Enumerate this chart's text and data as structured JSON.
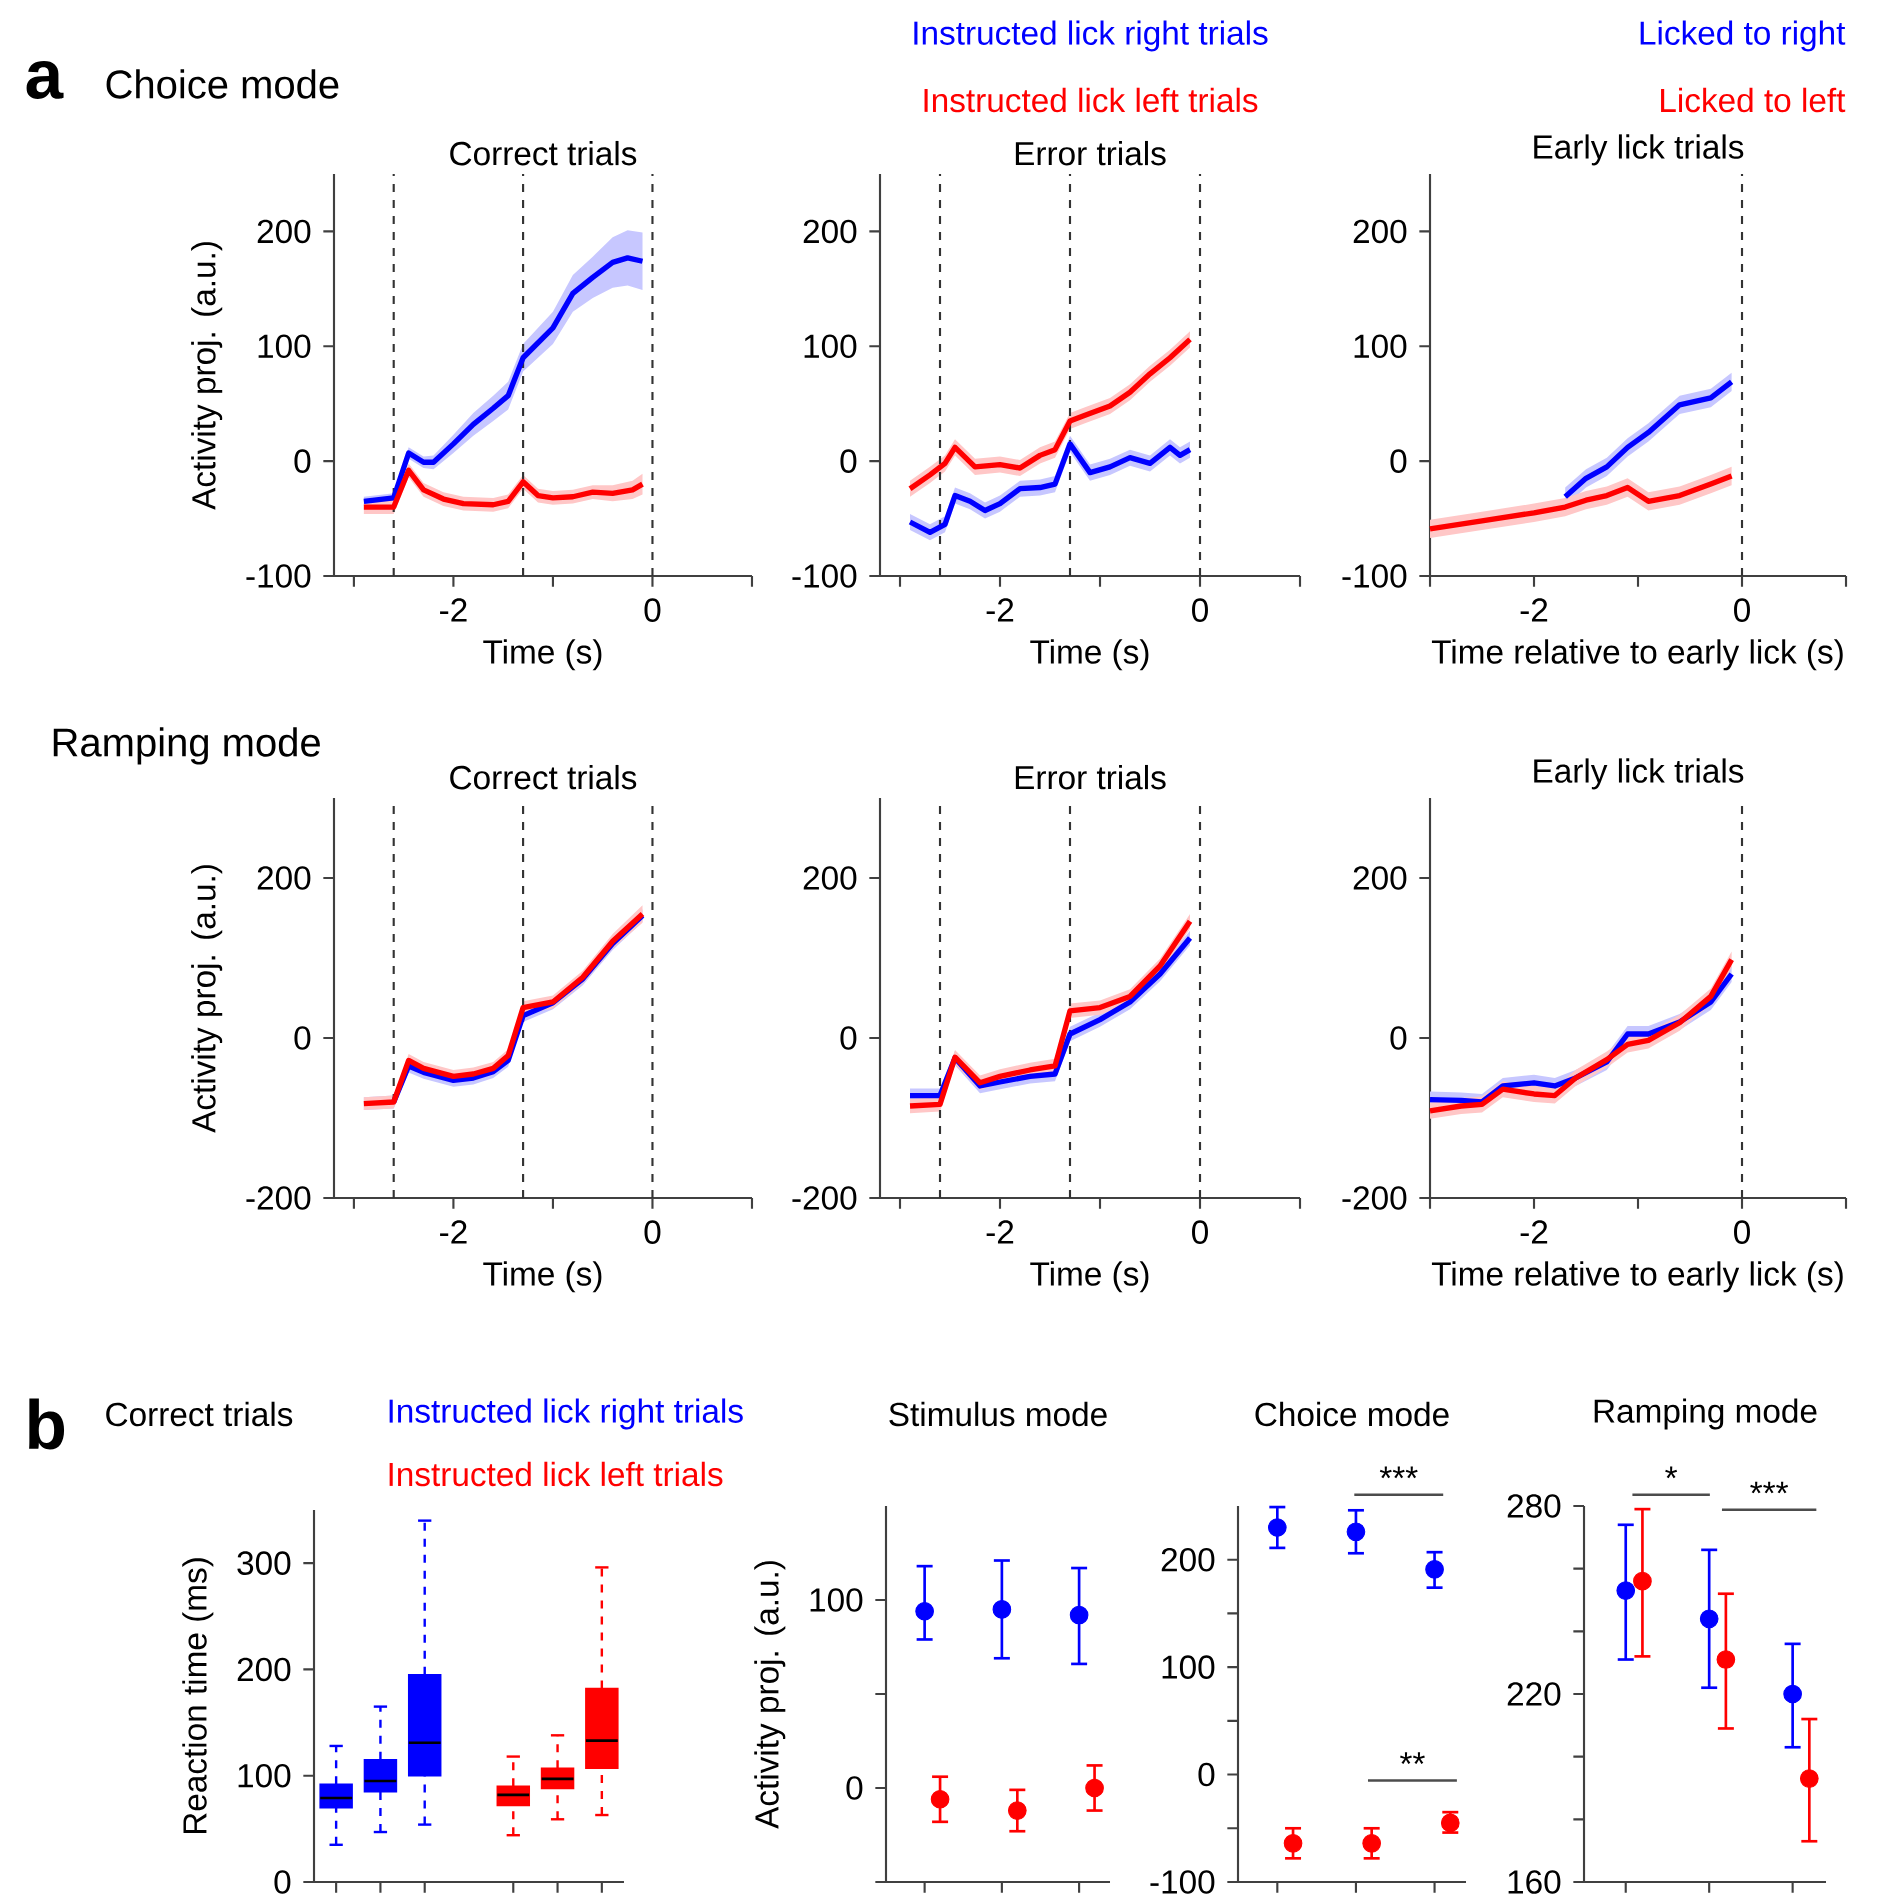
{
  "chart_data": [
    {
      "type": "line",
      "title": "Correct trials",
      "xlabel": "Time (s)",
      "ylabel": "Activity proj. (a.u.)",
      "annotations": [
        "a",
        "Choice mode"
      ],
      "xlim": [
        -3.2,
        1
      ],
      "ylim": [
        -100,
        250
      ],
      "xticks": [
        {
          "value": -3,
          "label": null
        },
        -2,
        {
          "value": -1,
          "label": null
        },
        0,
        {
          "value": 1,
          "label": null
        }
      ],
      "yticks": [
        -100,
        0,
        100,
        200
      ],
      "ref_lines": [
        {
          "axis": "x",
          "value": -2.6,
          "line_style": "dashed"
        },
        {
          "axis": "x",
          "value": -1.3,
          "line_style": "dashed"
        },
        {
          "axis": "x",
          "value": 0,
          "line_style": "dashed"
        }
      ],
      "series": [
        {
          "color": "#0000ff",
          "x": [
            -2.9,
            -2.6,
            -2.45,
            -2.3,
            -2.2,
            -2.0,
            -1.8,
            -1.6,
            -1.45,
            -1.3,
            -1.0,
            -0.8,
            -0.6,
            -0.4,
            -0.25,
            -0.1
          ],
          "values": [
            -35,
            -32,
            7,
            -1,
            -1,
            15,
            32,
            46,
            57,
            90,
            116,
            146,
            160,
            173,
            177,
            174
          ],
          "lower": [
            -39,
            -36,
            2,
            -6,
            -7,
            7,
            22,
            35,
            45,
            78,
            102,
            130,
            142,
            151,
            153,
            149
          ],
          "upper": [
            -31,
            -28,
            12,
            4,
            5,
            23,
            42,
            57,
            69,
            102,
            130,
            162,
            178,
            195,
            201,
            199
          ]
        },
        {
          "color": "#ff0000",
          "x": [
            -2.9,
            -2.6,
            -2.45,
            -2.3,
            -2.1,
            -1.9,
            -1.6,
            -1.45,
            -1.3,
            -1.15,
            -1.0,
            -0.8,
            -0.6,
            -0.4,
            -0.2,
            -0.1
          ],
          "values": [
            -40,
            -40,
            -8,
            -25,
            -33,
            -37,
            -38,
            -35,
            -18,
            -30,
            -32,
            -31,
            -27,
            -28,
            -25,
            -20
          ],
          "lower": [
            -46,
            -46,
            -14,
            -31,
            -39,
            -43,
            -44,
            -41,
            -24,
            -36,
            -38,
            -37,
            -33,
            -35,
            -33,
            -29
          ],
          "upper": [
            -34,
            -34,
            -2,
            -19,
            -27,
            -31,
            -32,
            -29,
            -12,
            -24,
            -26,
            -25,
            -21,
            -21,
            -17,
            -11
          ]
        }
      ]
    },
    {
      "type": "line",
      "title": "Error trials",
      "xlabel": "Time (s)",
      "legend": "top",
      "xlim": [
        -3.2,
        1
      ],
      "ylim": [
        -100,
        250
      ],
      "xticks": [
        {
          "value": -3,
          "label": null
        },
        -2,
        {
          "value": -1,
          "label": null
        },
        0,
        {
          "value": 1,
          "label": null
        }
      ],
      "yticks": [
        -100,
        0,
        100,
        200
      ],
      "ref_lines": [
        {
          "axis": "x",
          "value": -2.6,
          "line_style": "dashed"
        },
        {
          "axis": "x",
          "value": -1.3,
          "line_style": "dashed"
        },
        {
          "axis": "x",
          "value": 0,
          "line_style": "dashed"
        }
      ],
      "series": [
        {
          "name": "Instructed lick right trials",
          "color": "#0000ff",
          "x": [
            -2.9,
            -2.7,
            -2.55,
            -2.45,
            -2.3,
            -2.15,
            -2.0,
            -1.8,
            -1.6,
            -1.45,
            -1.3,
            -1.1,
            -0.9,
            -0.7,
            -0.5,
            -0.3,
            -0.2,
            -0.1
          ],
          "values": [
            -53,
            -62,
            -55,
            -30,
            -35,
            -43,
            -37,
            -24,
            -23,
            -20,
            15,
            -10,
            -5,
            3,
            -2,
            12,
            5,
            10
          ],
          "lower": [
            -60,
            -69,
            -62,
            -37,
            -42,
            -50,
            -44,
            -31,
            -30,
            -27,
            8,
            -17,
            -12,
            -4,
            -9,
            5,
            -2,
            3
          ],
          "upper": [
            -46,
            -55,
            -48,
            -23,
            -28,
            -36,
            -30,
            -17,
            -16,
            -13,
            22,
            -3,
            2,
            10,
            5,
            19,
            12,
            17
          ]
        },
        {
          "name": "Instructed lick left trials",
          "color": "#ff0000",
          "x": [
            -2.9,
            -2.7,
            -2.55,
            -2.45,
            -2.25,
            -2.0,
            -1.8,
            -1.6,
            -1.45,
            -1.3,
            -1.15,
            -0.9,
            -0.7,
            -0.5,
            -0.3,
            -0.1
          ],
          "values": [
            -24,
            -12,
            -2,
            12,
            -5,
            -3,
            -6,
            5,
            10,
            35,
            40,
            48,
            60,
            76,
            90,
            106
          ],
          "lower": [
            -31,
            -19,
            -9,
            5,
            -12,
            -10,
            -13,
            -2,
            3,
            28,
            33,
            41,
            53,
            69,
            83,
            99
          ],
          "upper": [
            -17,
            -5,
            5,
            19,
            2,
            4,
            1,
            12,
            17,
            42,
            47,
            55,
            67,
            83,
            97,
            113
          ]
        }
      ]
    },
    {
      "type": "line",
      "title": "Early lick trials",
      "xlabel": "Time relative to early lick (s)",
      "legend": "top right",
      "xlim": [
        -3,
        1
      ],
      "ylim": [
        -100,
        250
      ],
      "xticks": [
        {
          "value": -3,
          "label": null
        },
        -2,
        {
          "value": -1,
          "label": null
        },
        0,
        {
          "value": 1,
          "label": null
        }
      ],
      "yticks": [
        -100,
        0,
        100,
        200
      ],
      "ref_lines": [
        {
          "axis": "x",
          "value": 0,
          "line_style": "dashed"
        }
      ],
      "series": [
        {
          "name": "Licked to right",
          "color": "#0000ff",
          "x": [
            -1.7,
            -1.5,
            -1.3,
            -1.1,
            -0.9,
            -0.6,
            -0.3,
            -0.1
          ],
          "values": [
            -31,
            -15,
            -5,
            12,
            25,
            49,
            55,
            69
          ],
          "lower": [
            -39,
            -23,
            -13,
            4,
            17,
            41,
            47,
            61
          ],
          "upper": [
            -23,
            -7,
            3,
            20,
            33,
            57,
            63,
            77
          ]
        },
        {
          "name": "Licked to left",
          "color": "#ff0000",
          "x": [
            -3.0,
            -2.5,
            -2.0,
            -1.7,
            -1.5,
            -1.3,
            -1.1,
            -0.9,
            -0.6,
            -0.3,
            -0.1
          ],
          "values": [
            -59,
            -52,
            -45,
            -40,
            -34,
            -30,
            -23,
            -35,
            -30,
            -20,
            -13
          ],
          "lower": [
            -67,
            -60,
            -53,
            -48,
            -42,
            -38,
            -31,
            -43,
            -38,
            -28,
            -21
          ],
          "upper": [
            -51,
            -44,
            -37,
            -32,
            -26,
            -22,
            -15,
            -27,
            -22,
            -12,
            -5
          ]
        }
      ]
    },
    {
      "type": "line",
      "title": "Correct trials",
      "xlabel": "Time (s)",
      "ylabel": "Activity proj. (a.u.)",
      "annotations": [
        "Ramping mode"
      ],
      "xlim": [
        -3.2,
        1
      ],
      "ylim": [
        -200,
        300
      ],
      "xticks": [
        {
          "value": -3,
          "label": null
        },
        -2,
        {
          "value": -1,
          "label": null
        },
        0,
        {
          "value": 1,
          "label": null
        }
      ],
      "yticks": [
        -200,
        0,
        200
      ],
      "ref_lines": [
        {
          "axis": "x",
          "value": -2.6,
          "line_style": "dashed"
        },
        {
          "axis": "x",
          "value": -1.3,
          "line_style": "dashed"
        },
        {
          "axis": "x",
          "value": 0,
          "line_style": "dashed"
        }
      ],
      "series": [
        {
          "color": "#0000ff",
          "x": [
            -2.9,
            -2.6,
            -2.45,
            -2.3,
            -2.0,
            -1.8,
            -1.6,
            -1.45,
            -1.3,
            -1.0,
            -0.7,
            -0.4,
            -0.1
          ],
          "values": [
            null,
            -80,
            -35,
            -43,
            -53,
            -50,
            -42,
            -28,
            28,
            44,
            74,
            118,
            153
          ],
          "lower": [
            -90,
            -88,
            -43,
            -51,
            -61,
            -58,
            -50,
            -36,
            20,
            36,
            66,
            110,
            145
          ],
          "upper": [
            -74,
            -72,
            -27,
            -35,
            -45,
            -42,
            -34,
            -20,
            36,
            52,
            82,
            126,
            161
          ]
        },
        {
          "color": "#ff0000",
          "x": [
            -2.9,
            -2.6,
            -2.45,
            -2.3,
            -2.0,
            -1.8,
            -1.6,
            -1.45,
            -1.3,
            -1.0,
            -0.7,
            -0.4,
            -0.1
          ],
          "values": [
            -82,
            -80,
            -28,
            -38,
            -48,
            -45,
            -38,
            -22,
            38,
            45,
            76,
            121,
            155
          ],
          "lower": [
            -90,
            -88,
            -36,
            -46,
            -56,
            -53,
            -46,
            -30,
            30,
            37,
            68,
            112,
            144
          ],
          "upper": [
            -74,
            -72,
            -20,
            -30,
            -40,
            -37,
            -30,
            -14,
            46,
            53,
            84,
            130,
            166
          ]
        }
      ]
    },
    {
      "type": "line",
      "title": "Error trials",
      "xlabel": "Time (s)",
      "xlim": [
        -3.2,
        1
      ],
      "ylim": [
        -200,
        300
      ],
      "xticks": [
        {
          "value": -3,
          "label": null
        },
        -2,
        {
          "value": -1,
          "label": null
        },
        0,
        {
          "value": 1,
          "label": null
        }
      ],
      "yticks": [
        -200,
        0,
        200
      ],
      "ref_lines": [
        {
          "axis": "x",
          "value": -2.6,
          "line_style": "dashed"
        },
        {
          "axis": "x",
          "value": -1.3,
          "line_style": "dashed"
        },
        {
          "axis": "x",
          "value": 0,
          "line_style": "dashed"
        }
      ],
      "series": [
        {
          "color": "#0000ff",
          "x": [
            -2.9,
            -2.6,
            -2.45,
            -2.2,
            -2.0,
            -1.7,
            -1.45,
            -1.3,
            -1.0,
            -0.7,
            -0.4,
            -0.1
          ],
          "values": [
            -72,
            -72,
            -25,
            -60,
            -55,
            -48,
            -45,
            5,
            23,
            45,
            80,
            125
          ],
          "lower": [
            -81,
            -81,
            -34,
            -69,
            -64,
            -57,
            -54,
            -4,
            14,
            36,
            71,
            116
          ],
          "upper": [
            -63,
            -63,
            -16,
            -51,
            -46,
            -39,
            -36,
            14,
            32,
            54,
            89,
            134
          ]
        },
        {
          "color": "#ff0000",
          "x": [
            -2.9,
            -2.6,
            -2.45,
            -2.2,
            -2.0,
            -1.7,
            -1.45,
            -1.3,
            -1.0,
            -0.7,
            -0.4,
            -0.1
          ],
          "values": [
            -85,
            -83,
            -24,
            -56,
            -48,
            -40,
            -35,
            34,
            38,
            52,
            90,
            146
          ],
          "lower": [
            -94,
            -92,
            -33,
            -65,
            -57,
            -49,
            -44,
            25,
            29,
            43,
            81,
            137
          ],
          "upper": [
            -76,
            -74,
            -15,
            -47,
            -39,
            -31,
            -26,
            43,
            47,
            61,
            99,
            155
          ]
        }
      ]
    },
    {
      "type": "line",
      "title": "Early lick trials",
      "xlabel": "Time relative to early lick (s)",
      "xlim": [
        -3,
        1
      ],
      "ylim": [
        -200,
        300
      ],
      "xticks": [
        {
          "value": -3,
          "label": null
        },
        -2,
        {
          "value": -1,
          "label": null
        },
        0,
        {
          "value": 1,
          "label": null
        }
      ],
      "yticks": [
        -200,
        0,
        200
      ],
      "ref_lines": [
        {
          "axis": "x",
          "value": 0,
          "line_style": "dashed"
        }
      ],
      "series": [
        {
          "color": "#0000ff",
          "x": [
            -3.0,
            -2.7,
            -2.5,
            -2.3,
            -2.0,
            -1.8,
            -1.6,
            -1.3,
            -1.1,
            -0.9,
            -0.6,
            -0.3,
            -0.1
          ],
          "values": [
            -77,
            -78,
            -80,
            -60,
            -56,
            -60,
            -50,
            -30,
            5,
            5,
            20,
            45,
            80
          ],
          "lower": [
            -87,
            -88,
            -90,
            -70,
            -66,
            -70,
            -60,
            -40,
            -5,
            -5,
            10,
            35,
            70
          ],
          "upper": [
            -67,
            -68,
            -70,
            -50,
            -46,
            -50,
            -40,
            -20,
            15,
            15,
            30,
            55,
            90
          ]
        },
        {
          "color": "#ff0000",
          "x": [
            -3.0,
            -2.7,
            -2.5,
            -2.3,
            -2.0,
            -1.8,
            -1.6,
            -1.3,
            -1.1,
            -0.9,
            -0.6,
            -0.3,
            -0.1
          ],
          "values": [
            -91,
            -85,
            -83,
            -64,
            -70,
            -72,
            -50,
            -27,
            -8,
            -3,
            19,
            52,
            98
          ],
          "lower": [
            -101,
            -95,
            -93,
            -74,
            -80,
            -82,
            -60,
            -37,
            -18,
            -13,
            9,
            42,
            88
          ],
          "upper": [
            -81,
            -75,
            -73,
            -54,
            -60,
            -62,
            -40,
            -17,
            2,
            7,
            29,
            62,
            108
          ]
        }
      ]
    },
    {
      "type": "box",
      "title": "Correct trials",
      "ylabel": "Reaction time (ms)",
      "annotations": [
        "b"
      ],
      "legend": "top",
      "categories": [
        null,
        null,
        null,
        null,
        null,
        null,
        null
      ],
      "ylim": [
        0,
        350
      ],
      "yticks": [
        0,
        100,
        200,
        300
      ],
      "series": [
        {
          "name": "Instructed lick right trials",
          "color": "#0000ff",
          "boxes": [
            {
              "low": 35,
              "q1": 70,
              "median": 79,
              "q3": 92,
              "high": 128
            },
            {
              "low": 47,
              "q1": 85,
              "median": 95,
              "q3": 115,
              "high": 165
            },
            {
              "low": 54,
              "q1": 100,
              "median": 131,
              "q3": 195,
              "high": 340
            },
            null,
            null,
            null,
            null
          ]
        },
        {
          "name": "Instructed lick left trials",
          "color": "#ff0000",
          "boxes": [
            null,
            null,
            null,
            null,
            {
              "low": 44,
              "q1": 72,
              "median": 82,
              "q3": 90,
              "high": 118
            },
            {
              "low": 59,
              "q1": 88,
              "median": 97,
              "q3": 107,
              "high": 138
            },
            {
              "low": 63,
              "q1": 107,
              "median": 133,
              "q3": 182,
              "high": 296
            }
          ]
        }
      ]
    },
    {
      "type": "scatter",
      "title": "Stimulus mode",
      "ylabel": "Activity proj. (a.u.)",
      "marker": "circle",
      "categories": [
        null,
        null,
        null
      ],
      "ylim": [
        -50,
        150
      ],
      "yticks": [
        {
          "value": -50,
          "label": null
        },
        0,
        {
          "value": 50,
          "label": null
        },
        100
      ],
      "series": [
        {
          "color": "#0000ff",
          "values": [
            94,
            95,
            92
          ],
          "errors": [
            [
              79,
              118
            ],
            [
              69,
              121
            ],
            [
              66,
              117
            ]
          ]
        },
        {
          "color": "#ff0000",
          "values": [
            -6,
            -12,
            0
          ],
          "errors": [
            [
              -18,
              6
            ],
            [
              -23,
              -1
            ],
            [
              -12,
              12
            ]
          ]
        }
      ]
    },
    {
      "type": "scatter",
      "title": "Choice mode",
      "marker": "circle",
      "annotations": [
        "***",
        "**"
      ],
      "categories": [
        null,
        null,
        null
      ],
      "ylim": [
        -100,
        250
      ],
      "yticks": [
        -100,
        {
          "value": -50,
          "label": null
        },
        0,
        {
          "value": 50,
          "label": null
        },
        100,
        {
          "value": 150,
          "label": null
        },
        200
      ],
      "series": [
        {
          "color": "#0000ff",
          "values": [
            230,
            226,
            191
          ],
          "errors": [
            [
              211,
              249
            ],
            [
              206,
              246
            ],
            [
              174,
              207
            ]
          ]
        },
        {
          "color": "#ff0000",
          "values": [
            -64,
            -64,
            -45
          ],
          "errors": [
            [
              -78,
              -50
            ],
            [
              -78,
              -50
            ],
            [
              -54,
              -35
            ]
          ]
        }
      ]
    },
    {
      "type": "scatter",
      "title": "Ramping mode",
      "marker": "circle",
      "annotations": [
        "*",
        "***"
      ],
      "categories": [
        null,
        null,
        null
      ],
      "ylim": [
        160,
        280
      ],
      "yticks": [
        160,
        {
          "value": 180,
          "label": null
        },
        {
          "value": 200,
          "label": null
        },
        220,
        {
          "value": 240,
          "label": null
        },
        {
          "value": 260,
          "label": null
        },
        280
      ],
      "series": [
        {
          "color": "#0000ff",
          "values": [
            253,
            244,
            220
          ],
          "errors": [
            [
              231,
              274
            ],
            [
              222,
              266
            ],
            [
              203,
              236
            ]
          ]
        },
        {
          "color": "#ff0000",
          "values": [
            256,
            231,
            193
          ],
          "errors": [
            [
              232,
              279
            ],
            [
              209,
              252
            ],
            [
              173,
              212
            ]
          ]
        }
      ]
    }
  ]
}
